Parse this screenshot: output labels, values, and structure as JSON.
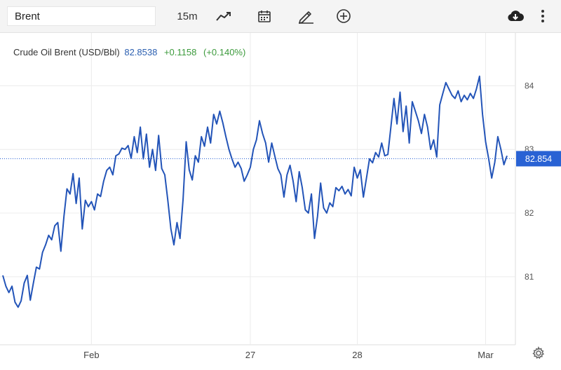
{
  "toolbar": {
    "symbol_value": "Brent",
    "interval_label": "15m",
    "icons": [
      "line-chart-icon",
      "calendar-icon",
      "draw-pencil-icon",
      "add-indicator-icon",
      "download-icon",
      "more-options-icon"
    ]
  },
  "legend": {
    "name": "Crude Oil Brent (USD/Bbl)",
    "price": "82.8538",
    "change": "+0.1158",
    "change_pct": "(+0.140%)"
  },
  "colors": {
    "line": "#2354b8",
    "price_tag": "#2962d4",
    "change_positive": "#3c9a3c",
    "grid": "#ececec"
  },
  "chart_data": {
    "type": "line",
    "title": "Crude Oil Brent (USD/Bbl)",
    "xlabel": "",
    "ylabel": "",
    "ylim": [
      79.93,
      84.83
    ],
    "grid": true,
    "x_ticks": [
      {
        "label": "Feb",
        "index": 29
      },
      {
        "label": "27",
        "index": 81
      },
      {
        "label": "28",
        "index": 116
      },
      {
        "label": "Mar",
        "index": 158
      }
    ],
    "y_ticks": [
      "81",
      "82",
      "83",
      "84"
    ],
    "current_price_label": "82.854",
    "current_price": 82.854,
    "series": [
      {
        "values": [
          81.02,
          80.85,
          80.75,
          80.85,
          80.6,
          80.52,
          80.62,
          80.9,
          81.02,
          80.63,
          80.9,
          81.15,
          81.12,
          81.38,
          81.5,
          81.65,
          81.58,
          81.8,
          81.85,
          81.4,
          81.95,
          82.38,
          82.3,
          82.62,
          82.15,
          82.55,
          81.75,
          82.2,
          82.1,
          82.18,
          82.05,
          82.3,
          82.26,
          82.5,
          82.67,
          82.72,
          82.6,
          82.9,
          82.93,
          83.02,
          83.0,
          83.06,
          82.86,
          83.2,
          82.95,
          83.35,
          82.85,
          83.24,
          82.72,
          83.0,
          82.67,
          83.22,
          82.7,
          82.6,
          82.2,
          81.75,
          81.5,
          81.85,
          81.6,
          82.22,
          83.12,
          82.68,
          82.52,
          82.9,
          82.8,
          83.2,
          83.05,
          83.35,
          83.1,
          83.55,
          83.4,
          83.6,
          83.42,
          83.2,
          83.0,
          82.85,
          82.72,
          82.8,
          82.7,
          82.5,
          82.6,
          82.72,
          83.0,
          83.15,
          83.45,
          83.25,
          83.1,
          82.8,
          83.1,
          82.9,
          82.7,
          82.6,
          82.25,
          82.6,
          82.75,
          82.5,
          82.18,
          82.65,
          82.4,
          82.05,
          82.0,
          82.3,
          81.6,
          81.95,
          82.47,
          82.08,
          82.0,
          82.16,
          82.1,
          82.4,
          82.35,
          82.42,
          82.3,
          82.37,
          82.27,
          82.72,
          82.55,
          82.68,
          82.25,
          82.55,
          82.85,
          82.79,
          82.95,
          82.88,
          83.1,
          82.9,
          82.92,
          83.35,
          83.8,
          83.4,
          83.9,
          83.28,
          83.68,
          83.1,
          83.75,
          83.6,
          83.45,
          83.25,
          83.55,
          83.35,
          83.0,
          83.15,
          82.88,
          83.7,
          83.88,
          84.05,
          83.95,
          83.85,
          83.8,
          83.92,
          83.75,
          83.85,
          83.78,
          83.88,
          83.8,
          83.95,
          84.15,
          83.55,
          83.12,
          82.85,
          82.55,
          82.8,
          83.2,
          83.0,
          82.76,
          82.9
        ]
      }
    ]
  }
}
